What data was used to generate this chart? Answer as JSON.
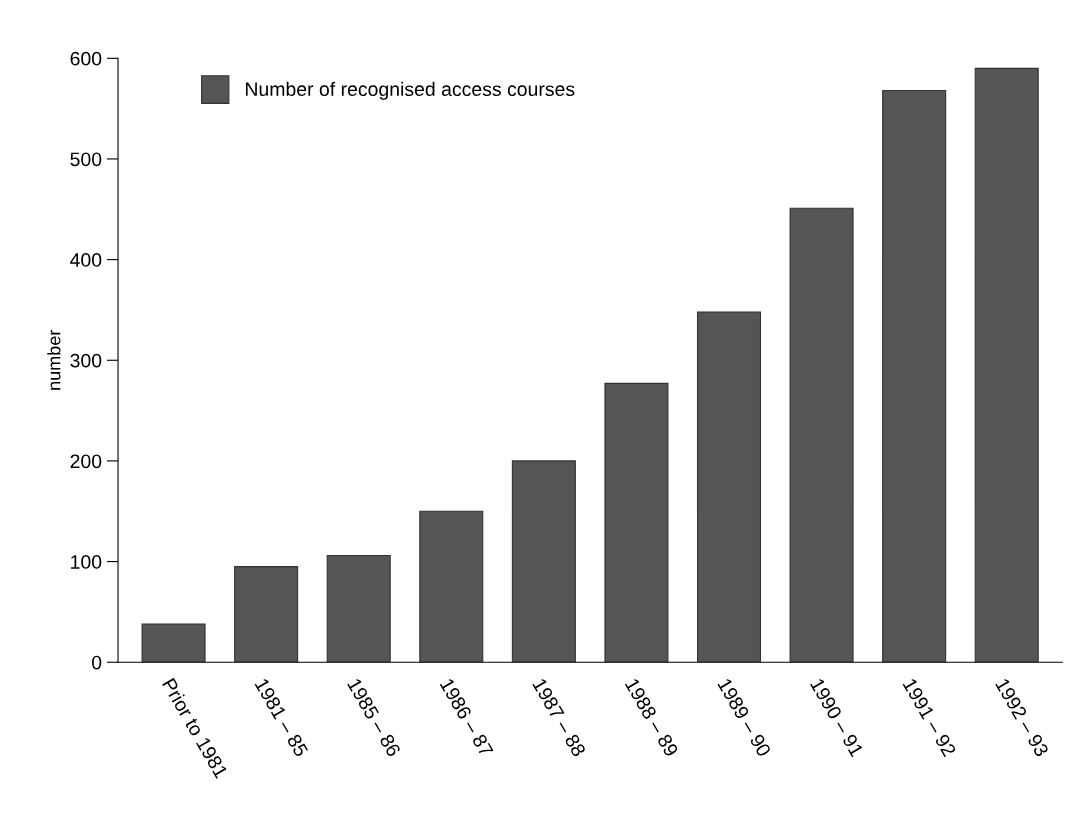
{
  "chart_data": {
    "type": "bar",
    "ylabel": "number",
    "categories": [
      "Prior to 1981",
      "1981 – 85",
      "1985 – 86",
      "1986 – 87",
      "1987 – 88",
      "1988 – 89",
      "1989 – 90",
      "1990 – 91",
      "1991 – 92",
      "1992 – 93"
    ],
    "series": [
      {
        "name": "Number of recognised access courses",
        "color": "#555555",
        "values": [
          38,
          95,
          106,
          150,
          200,
          277,
          348,
          451,
          568,
          590
        ]
      }
    ],
    "ylim": [
      0,
      600
    ],
    "yticks": [
      0,
      100,
      200,
      300,
      400,
      500,
      600
    ],
    "grid": false,
    "legend": "top left"
  }
}
